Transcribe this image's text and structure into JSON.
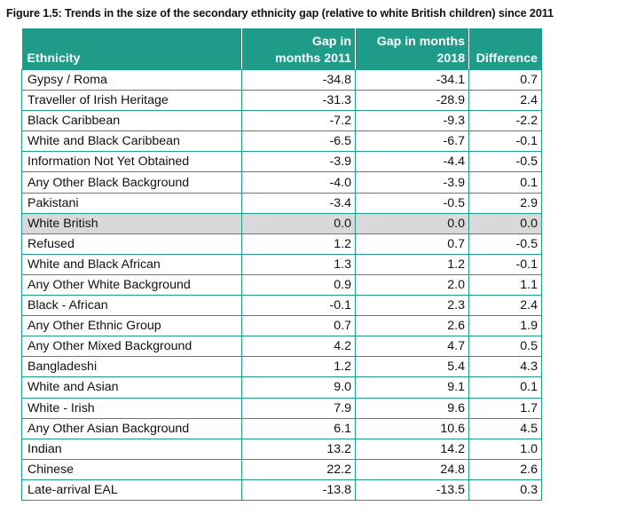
{
  "caption": "Figure 1.5: Trends in the size of the secondary ethnicity gap (relative to white British children) since 2011",
  "table": {
    "headers": {
      "ethnicity": "Ethnicity",
      "gap_2011_line1": "Gap in",
      "gap_2011_line2": "months 2011",
      "gap_2018_line1": "Gap in months",
      "gap_2018_line2": "2018",
      "difference": "Difference"
    },
    "highlight_color": "#d9d9d9",
    "header_color": "#1f9b8a",
    "rows": [
      {
        "ethnicity": "Gypsy / Roma",
        "gap_2011": "-34.8",
        "gap_2018": "-34.1",
        "difference": "0.7"
      },
      {
        "ethnicity": "Traveller of Irish Heritage",
        "gap_2011": "-31.3",
        "gap_2018": "-28.9",
        "difference": "2.4"
      },
      {
        "ethnicity": "Black Caribbean",
        "gap_2011": "-7.2",
        "gap_2018": "-9.3",
        "difference": "-2.2"
      },
      {
        "ethnicity": "White and Black Caribbean",
        "gap_2011": "-6.5",
        "gap_2018": "-6.7",
        "difference": "-0.1"
      },
      {
        "ethnicity": "Information Not Yet Obtained",
        "gap_2011": "-3.9",
        "gap_2018": "-4.4",
        "difference": "-0.5"
      },
      {
        "ethnicity": "Any Other Black Background",
        "gap_2011": "-4.0",
        "gap_2018": "-3.9",
        "difference": "0.1"
      },
      {
        "ethnicity": "Pakistani",
        "gap_2011": "-3.4",
        "gap_2018": "-0.5",
        "difference": "2.9"
      },
      {
        "ethnicity": "White British",
        "gap_2011": "0.0",
        "gap_2018": "0.0",
        "difference": "0.0",
        "highlight": true
      },
      {
        "ethnicity": "Refused",
        "gap_2011": "1.2",
        "gap_2018": "0.7",
        "difference": "-0.5"
      },
      {
        "ethnicity": "White and Black African",
        "gap_2011": "1.3",
        "gap_2018": "1.2",
        "difference": "-0.1"
      },
      {
        "ethnicity": "Any Other White Background",
        "gap_2011": "0.9",
        "gap_2018": "2.0",
        "difference": "1.1"
      },
      {
        "ethnicity": "Black - African",
        "gap_2011": "-0.1",
        "gap_2018": "2.3",
        "difference": "2.4"
      },
      {
        "ethnicity": "Any Other Ethnic Group",
        "gap_2011": "0.7",
        "gap_2018": "2.6",
        "difference": "1.9"
      },
      {
        "ethnicity": "Any Other Mixed Background",
        "gap_2011": "4.2",
        "gap_2018": "4.7",
        "difference": "0.5"
      },
      {
        "ethnicity": "Bangladeshi",
        "gap_2011": "1.2",
        "gap_2018": "5.4",
        "difference": "4.3"
      },
      {
        "ethnicity": "White and Asian",
        "gap_2011": "9.0",
        "gap_2018": "9.1",
        "difference": "0.1"
      },
      {
        "ethnicity": "White - Irish",
        "gap_2011": "7.9",
        "gap_2018": "9.6",
        "difference": "1.7"
      },
      {
        "ethnicity": "Any Other Asian Background",
        "gap_2011": "6.1",
        "gap_2018": "10.6",
        "difference": "4.5"
      },
      {
        "ethnicity": "Indian",
        "gap_2011": "13.2",
        "gap_2018": "14.2",
        "difference": "1.0"
      },
      {
        "ethnicity": "Chinese",
        "gap_2011": "22.2",
        "gap_2018": "24.8",
        "difference": "2.6"
      },
      {
        "ethnicity": "Late-arrival EAL",
        "gap_2011": "-13.8",
        "gap_2018": "-13.5",
        "difference": "0.3"
      }
    ]
  }
}
